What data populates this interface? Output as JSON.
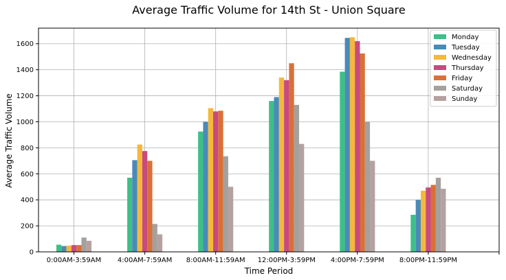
{
  "chart_data": {
    "type": "bar",
    "title": "Average Traffic Volume for 14th St - Union Square",
    "xlabel": "Time Period",
    "ylabel": "Average Traffic Volume",
    "ylim": [
      0,
      1720
    ],
    "yticks": [
      0,
      200,
      400,
      600,
      800,
      1000,
      1200,
      1400,
      1600
    ],
    "grid": true,
    "legend_position": "top-right",
    "categories": [
      "0:00AM-3:59AM",
      "4:00AM-7:59AM",
      "8:00AM-11:59AM",
      "12:00PM-3:59PM",
      "4:00PM-7:59PM",
      "8:00PM-11:59PM"
    ],
    "series": [
      {
        "name": "Monday",
        "color": "#3dbf88",
        "values": [
          55,
          570,
          925,
          1160,
          1385,
          285
        ]
      },
      {
        "name": "Tuesday",
        "color": "#4a8ab8",
        "values": [
          45,
          705,
          1000,
          1190,
          1645,
          400
        ]
      },
      {
        "name": "Wednesday",
        "color": "#f6b83a",
        "values": [
          48,
          825,
          1105,
          1340,
          1650,
          470
        ]
      },
      {
        "name": "Thursday",
        "color": "#c84a7e",
        "values": [
          52,
          775,
          1080,
          1320,
          1620,
          495
        ]
      },
      {
        "name": "Friday",
        "color": "#d97038",
        "values": [
          52,
          700,
          1085,
          1450,
          1525,
          515
        ]
      },
      {
        "name": "Saturday",
        "color": "#a4a09e",
        "values": [
          110,
          215,
          735,
          1130,
          1000,
          570
        ]
      },
      {
        "name": "Sunday",
        "color": "#b5a19f",
        "values": [
          85,
          135,
          500,
          830,
          700,
          485
        ]
      }
    ]
  }
}
